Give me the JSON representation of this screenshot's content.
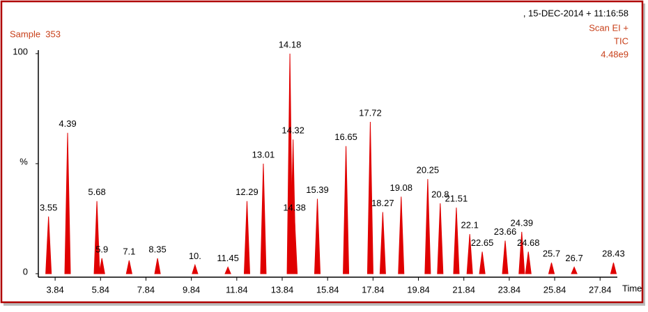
{
  "chart_data": {
    "type": "chromatogram",
    "sample": "Sample  353",
    "header_date": ", 15-DEC-2014 + 11:16:58",
    "scan": "Scan EI +",
    "trace": "TIC",
    "intensity": "4.48e9",
    "y_label": "%",
    "x_label": "Time",
    "color": "#e00000",
    "series": [
      {
        "name": "TIC",
        "x": [
          3.55,
          4.39,
          5.68,
          5.9,
          7.1,
          8.35,
          10,
          11.45,
          12.29,
          13.01,
          14.18,
          14.32,
          14.38,
          15.39,
          16.65,
          17.72,
          18.27,
          19.08,
          20.25,
          20.8,
          21.51,
          22.1,
          22.65,
          23.66,
          24.39,
          24.68,
          25.7,
          26.7,
          28.43
        ],
        "x_labels": [
          "3.55",
          "4.39",
          "5.68",
          "5.9",
          "7.1",
          "8.35",
          "10.",
          "11.45",
          "12.29",
          "13.01",
          "14.18",
          "14.32",
          "14.38",
          "15.39",
          "16.65",
          "17.72",
          "18.27",
          "19.08",
          "20.25",
          "20.8",
          "21.51",
          "22.1",
          "22.65",
          "23.66",
          "24.39",
          "24.68",
          "25.7",
          "26.7",
          "28.43"
        ],
        "values": [
          26,
          64,
          33,
          7,
          6,
          7,
          4,
          3,
          33,
          50,
          100,
          61,
          26,
          34,
          58,
          69,
          28,
          35,
          43,
          32,
          30,
          18,
          10,
          15,
          19,
          10,
          5,
          3,
          5
        ]
      }
    ],
    "xlim": [
      3.1,
      28.6
    ],
    "xticks": [
      3.84,
      5.84,
      7.84,
      9.84,
      11.84,
      13.84,
      15.84,
      17.84,
      19.84,
      21.84,
      23.84,
      25.84,
      27.84
    ],
    "ylim": [
      0,
      100
    ],
    "yticks": [
      0,
      100
    ]
  }
}
